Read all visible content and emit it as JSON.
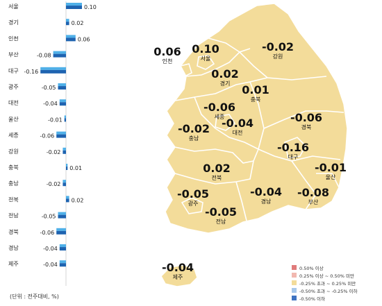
{
  "bar_chart": {
    "unit_note": "(단위 : 전주대비, %)",
    "rows": [
      {
        "region": "서울",
        "value": 0.1,
        "label": "0.10"
      },
      {
        "region": "경기",
        "value": 0.02,
        "label": "0.02"
      },
      {
        "region": "인천",
        "value": 0.06,
        "label": "0.06"
      },
      {
        "region": "부산",
        "value": -0.08,
        "label": "-0.08"
      },
      {
        "region": "대구",
        "value": -0.16,
        "label": "-0.16"
      },
      {
        "region": "광주",
        "value": -0.05,
        "label": "-0.05"
      },
      {
        "region": "대전",
        "value": -0.04,
        "label": "-0.04"
      },
      {
        "region": "울산",
        "value": -0.01,
        "label": "-0.01"
      },
      {
        "region": "세종",
        "value": -0.06,
        "label": "-0.06"
      },
      {
        "region": "강원",
        "value": -0.02,
        "label": "-0.02"
      },
      {
        "region": "충북",
        "value": 0.01,
        "label": "0.01"
      },
      {
        "region": "충남",
        "value": -0.02,
        "label": "-0.02"
      },
      {
        "region": "전북",
        "value": 0.02,
        "label": "0.02"
      },
      {
        "region": "전남",
        "value": -0.05,
        "label": "-0.05"
      },
      {
        "region": "경북",
        "value": -0.06,
        "label": "-0.06"
      },
      {
        "region": "경남",
        "value": -0.04,
        "label": "-0.04"
      },
      {
        "region": "제주",
        "value": -0.04,
        "label": "-0.04"
      }
    ]
  },
  "map_labels": [
    {
      "region": "인천",
      "value": "0.06"
    },
    {
      "region": "서울",
      "value": "0.10"
    },
    {
      "region": "경기",
      "value": "0.02"
    },
    {
      "region": "강원",
      "value": "-0.02"
    },
    {
      "region": "충북",
      "value": "0.01"
    },
    {
      "region": "세종",
      "value": "-0.06"
    },
    {
      "region": "대전",
      "value": "-0.04"
    },
    {
      "region": "충남",
      "value": "-0.02"
    },
    {
      "region": "경북",
      "value": "-0.06"
    },
    {
      "region": "대구",
      "value": "-0.16"
    },
    {
      "region": "울산",
      "value": "-0.01"
    },
    {
      "region": "전북",
      "value": "0.02"
    },
    {
      "region": "광주",
      "value": "-0.05"
    },
    {
      "region": "경남",
      "value": "-0.04"
    },
    {
      "region": "부산",
      "value": "-0.08"
    },
    {
      "region": "전남",
      "value": "-0.05"
    },
    {
      "region": "제주",
      "value": "-0.04"
    }
  ],
  "legend": [
    {
      "label": "0.50% 이상",
      "color": "#e07b7b"
    },
    {
      "label": "0.25% 이상 ~ 0.50% 미만",
      "color": "#f2b8b0"
    },
    {
      "label": "-0.25% 초과 ~ 0.25% 미만",
      "color": "#f3dc9a"
    },
    {
      "label": "-0.50% 초과 ~ -0.25% 이하",
      "color": "#a8c8ea"
    },
    {
      "label": "-0.50% 이하",
      "color": "#3f73c1"
    }
  ],
  "colors": {
    "map_fill": "#f3dc9a",
    "map_stroke": "#ffffff",
    "bar_light": "#4fb0e8",
    "bar_dark": "#1e63b0"
  }
}
